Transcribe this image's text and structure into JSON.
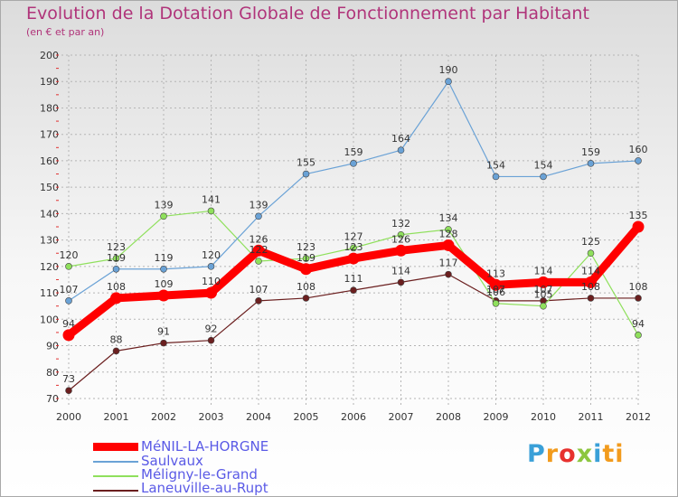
{
  "title": "Evolution de la Dotation Globale de Fonctionnement par Habitant",
  "subtitle": "(en € et par an)",
  "logo": [
    "P",
    "r",
    "o",
    "x",
    "i",
    "ti"
  ],
  "chart_data": {
    "type": "line",
    "categories": [
      "2000",
      "2001",
      "2002",
      "2003",
      "2004",
      "2005",
      "2006",
      "2007",
      "2008",
      "2009",
      "2010",
      "2011",
      "2012"
    ],
    "ylim": [
      70,
      200
    ],
    "yticks": [
      70,
      80,
      90,
      100,
      110,
      120,
      130,
      140,
      150,
      160,
      170,
      180,
      190,
      200
    ],
    "grid": true,
    "legend_position": "bottom-left",
    "series": [
      {
        "name": "MéNIL-LA-HORGNE",
        "color": "#ff0000",
        "values": [
          94,
          108,
          109,
          110,
          126,
          119,
          123,
          126,
          128,
          113,
          114,
          114,
          135
        ]
      },
      {
        "name": "Saulvaux",
        "color": "#6aa2d6",
        "values": [
          107,
          119,
          119,
          120,
          139,
          155,
          159,
          164,
          190,
          154,
          154,
          159,
          160
        ]
      },
      {
        "name": "Méligny-le-Grand",
        "color": "#8fe05c",
        "values": [
          120,
          123,
          139,
          141,
          122,
          123,
          127,
          132,
          134,
          106,
          105,
          125,
          94
        ]
      },
      {
        "name": "Laneuville-au-Rupt",
        "color": "#6b1f1f",
        "values": [
          73,
          88,
          91,
          92,
          107,
          108,
          111,
          114,
          117,
          107,
          107,
          108,
          108
        ]
      }
    ]
  }
}
